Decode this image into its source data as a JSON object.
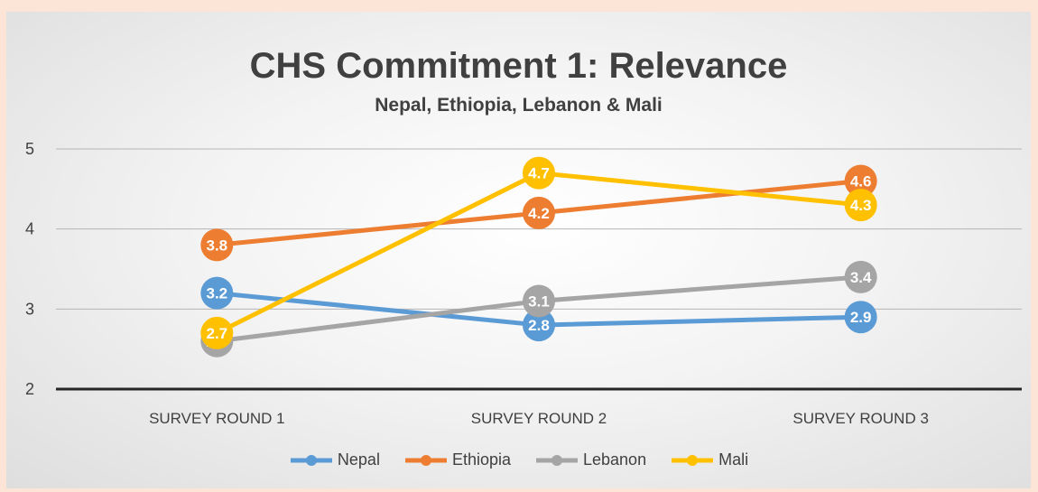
{
  "chart_data": {
    "type": "line",
    "title": "CHS Commitment 1: Relevance",
    "subtitle": "Nepal, Ethiopia, Lebanon & Mali",
    "xlabel": "",
    "ylabel": "",
    "categories": [
      "SURVEY ROUND 1",
      "SURVEY ROUND 2",
      "SURVEY ROUND 3"
    ],
    "ylim": [
      2,
      5
    ],
    "yticks": [
      "2",
      "3",
      "4",
      "5"
    ],
    "grid": true,
    "legend_position": "bottom",
    "series": [
      {
        "name": "Nepal",
        "color": "#5b9bd5",
        "values": [
          3.2,
          2.8,
          2.9
        ]
      },
      {
        "name": "Ethiopia",
        "color": "#ed7d31",
        "values": [
          3.8,
          4.2,
          4.6
        ]
      },
      {
        "name": "Lebanon",
        "color": "#a5a5a5",
        "values": [
          2.6,
          3.1,
          3.4
        ]
      },
      {
        "name": "Mali",
        "color": "#ffc000",
        "values": [
          2.7,
          4.7,
          4.3
        ]
      }
    ],
    "data_labels": [
      [
        "3.2",
        "2.8",
        "2.9"
      ],
      [
        "3.8",
        "4.2",
        "4.6"
      ],
      [
        "2.6",
        "3.1",
        "3.4"
      ],
      [
        "2.7",
        "4.7",
        "4.3"
      ]
    ]
  }
}
